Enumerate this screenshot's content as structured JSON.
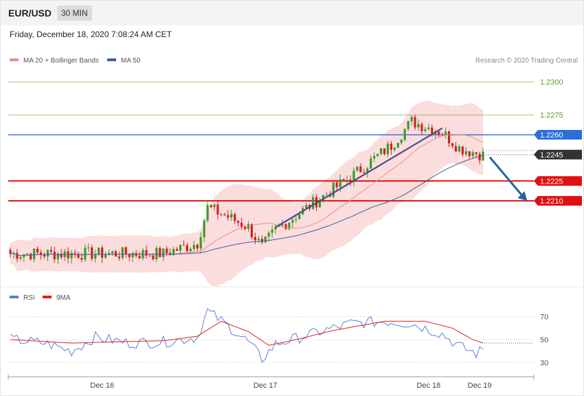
{
  "header": {
    "symbol": "EUR/USD",
    "timeframe": "30 MIN"
  },
  "datetime": "Friday, December 18, 2020 7:08:24 AM CET",
  "price_legend": [
    {
      "label": "MA 20 + Bollinger Bands",
      "color": "#f28b8b"
    },
    {
      "label": "MA 50",
      "color": "#3a5f9c"
    }
  ],
  "copyright": "Research © 2020 Trading Central",
  "rsi_legend": [
    {
      "label": "RSI",
      "color": "#5b7fd6"
    },
    {
      "label": "9MA",
      "color": "#e02020"
    }
  ],
  "chart_data": [
    {
      "type": "candlestick",
      "title": "",
      "ylim": [
        1.2145,
        1.231
      ],
      "x_ticks": [
        {
          "label": "Dec 16",
          "index": 27
        },
        {
          "label": "Dec 17",
          "index": 75
        },
        {
          "label": "Dec 18",
          "index": 123
        },
        {
          "label": "Dec 19",
          "index": 138
        }
      ],
      "candles_summary": {
        "count": 140,
        "keypoints": [
          {
            "i": 0,
            "close": 1.217
          },
          {
            "i": 20,
            "close": 1.217
          },
          {
            "i": 45,
            "close": 1.217
          },
          {
            "i": 55,
            "close": 1.2178
          },
          {
            "i": 58,
            "close": 1.2205
          },
          {
            "i": 64,
            "close": 1.2198
          },
          {
            "i": 70,
            "close": 1.219
          },
          {
            "i": 74,
            "close": 1.2175
          },
          {
            "i": 78,
            "close": 1.2188
          },
          {
            "i": 90,
            "close": 1.221
          },
          {
            "i": 100,
            "close": 1.2228
          },
          {
            "i": 112,
            "close": 1.2252
          },
          {
            "i": 118,
            "close": 1.227
          },
          {
            "i": 127,
            "close": 1.2262
          },
          {
            "i": 132,
            "close": 1.225
          },
          {
            "i": 140,
            "close": 1.2244
          }
        ]
      },
      "levels": [
        {
          "value": 1.23,
          "label": "1.2300",
          "kind": "resistance",
          "color": "#5aa02c"
        },
        {
          "value": 1.2275,
          "label": "1.2275",
          "kind": "resistance",
          "color": "#5aa02c"
        },
        {
          "value": 1.226,
          "label": "1.2260",
          "kind": "pivot",
          "color": "#2a6fdb"
        },
        {
          "value": 1.2245,
          "label": "1.2245",
          "kind": "last",
          "color": "#333333"
        },
        {
          "value": 1.2225,
          "label": "1.2225",
          "kind": "support",
          "color": "#e01010"
        },
        {
          "value": 1.221,
          "label": "1.2210",
          "kind": "support",
          "color": "#e01010"
        }
      ],
      "trendline": {
        "from": {
          "i": 78,
          "value": 1.219
        },
        "to": {
          "i": 127,
          "value": 1.2265
        }
      },
      "forecast_arrow": {
        "from": {
          "i": 141,
          "value": 1.2243
        },
        "to": {
          "i": 152,
          "value": 1.221
        }
      }
    },
    {
      "type": "line",
      "title": "",
      "ylim": [
        20,
        80
      ],
      "y_ticks": [
        {
          "value": 70,
          "label": "70"
        },
        {
          "value": 50,
          "label": "50"
        },
        {
          "value": 30,
          "label": "30"
        }
      ],
      "series": [
        {
          "name": "RSI",
          "keypoints": [
            [
              0,
              50
            ],
            [
              10,
              47
            ],
            [
              18,
              40
            ],
            [
              25,
              52
            ],
            [
              35,
              47
            ],
            [
              45,
              48
            ],
            [
              55,
              52
            ],
            [
              58,
              75
            ],
            [
              64,
              62
            ],
            [
              70,
              48
            ],
            [
              74,
              33
            ],
            [
              78,
              46
            ],
            [
              90,
              56
            ],
            [
              100,
              64
            ],
            [
              110,
              66
            ],
            [
              118,
              64
            ],
            [
              127,
              55
            ],
            [
              132,
              44
            ],
            [
              137,
              38
            ],
            [
              140,
              43
            ]
          ]
        },
        {
          "name": "9MA",
          "keypoints": [
            [
              0,
              50
            ],
            [
              18,
              47
            ],
            [
              30,
              48
            ],
            [
              45,
              49
            ],
            [
              55,
              53
            ],
            [
              62,
              66
            ],
            [
              70,
              57
            ],
            [
              76,
              45
            ],
            [
              84,
              50
            ],
            [
              95,
              58
            ],
            [
              110,
              66
            ],
            [
              122,
              66
            ],
            [
              130,
              60
            ],
            [
              136,
              50
            ],
            [
              140,
              46
            ]
          ]
        }
      ]
    }
  ]
}
